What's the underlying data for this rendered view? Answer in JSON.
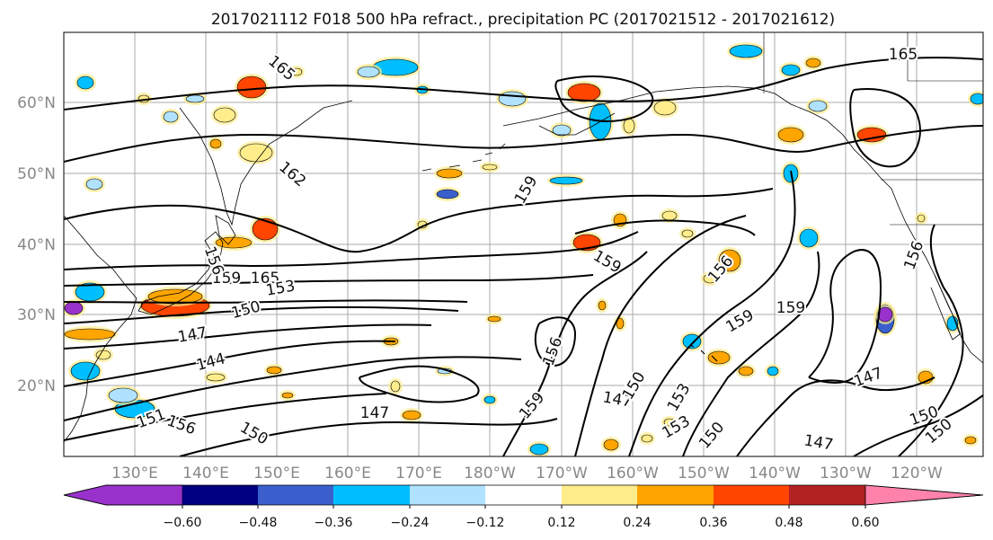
{
  "title": "2017021112 F018 500 hPa refract., precipitation PC (2017021512 - 2017021612)",
  "map": {
    "lat_ticks": [
      "60°N",
      "50°N",
      "40°N",
      "30°N",
      "20°N"
    ],
    "lon_ticks": [
      "130°E",
      "140°E",
      "150°E",
      "160°E",
      "170°E",
      "180°W",
      "170°W",
      "160°W",
      "150°W",
      "140°W",
      "130°W",
      "120°W"
    ],
    "grid": true,
    "contour_labels": [
      "165",
      "165",
      "162",
      "165",
      "159",
      "159",
      "153",
      "150",
      "147",
      "144",
      "151",
      "156",
      "147",
      "150",
      "159",
      "156",
      "159",
      "156",
      "147",
      "150",
      "153",
      "153",
      "150",
      "147",
      "156",
      "159",
      "159",
      "147",
      "150",
      "150",
      "156"
    ]
  },
  "colorbar": {
    "ticks": [
      "−0.60",
      "−0.48",
      "−0.36",
      "−0.24",
      "−0.12",
      "0.12",
      "0.24",
      "0.36",
      "0.48",
      "0.60"
    ],
    "colors": [
      "#9932cc",
      "#000080",
      "#3a5fcd",
      "#00bfff",
      "#b0e2ff",
      "#ffffff",
      "#ffec8b",
      "#ffa500",
      "#ff4500",
      "#b22222",
      "#ff82ab"
    ]
  },
  "anomaly_colors": {
    "blue_light": "#b0e2ff",
    "blue": "#00bfff",
    "blue_mid": "#3a5fcd",
    "navy": "#000080",
    "purple": "#9932cc",
    "yellow": "#ffec8b",
    "orange": "#ffa500",
    "red_orange": "#ff4500",
    "red": "#b22222"
  }
}
